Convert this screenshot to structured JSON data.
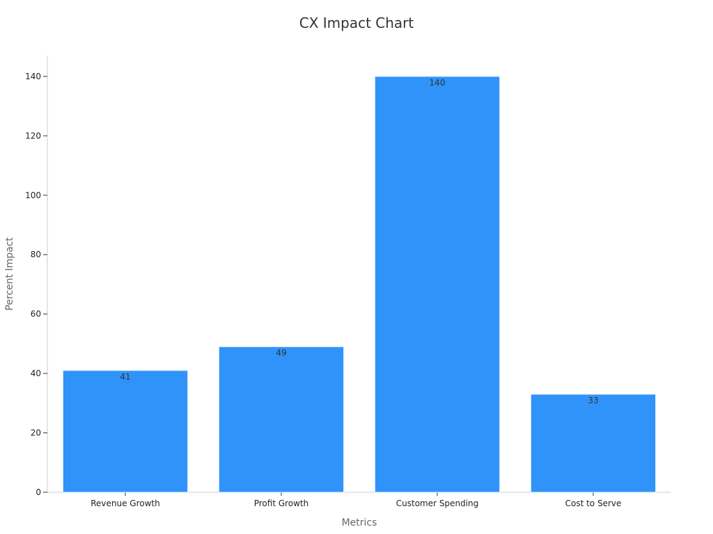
{
  "chart_data": {
    "type": "bar",
    "title": "CX Impact Chart",
    "xlabel": "Metrics",
    "ylabel": "Percent Impact",
    "categories": [
      "Revenue Growth",
      "Profit Growth",
      "Customer Spending",
      "Cost to Serve"
    ],
    "values": [
      41,
      49,
      140,
      33
    ],
    "data_labels": [
      "41",
      "49",
      "140",
      "33"
    ],
    "ylim": [
      0,
      147
    ],
    "yticks": [
      0,
      20,
      40,
      60,
      80,
      100,
      120,
      140
    ],
    "ytick_labels": [
      "0",
      "20",
      "40",
      "60",
      "80",
      "100",
      "120",
      "140"
    ],
    "grid": false,
    "legend": "none",
    "bar_color": "#2f93fa",
    "bar_edge_color": "#e8f2ff"
  }
}
